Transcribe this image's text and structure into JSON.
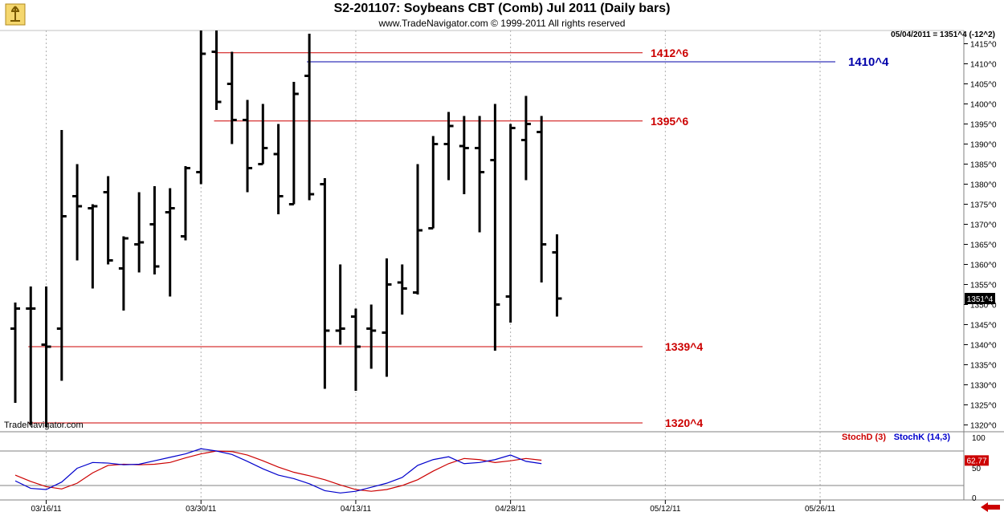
{
  "header": {
    "title": "S2-201107:  Soybeans CBT (Comb) Jul 2011  (Daily bars)",
    "subtitle": "www.TradeNavigator.com © 1999-2011 All rights reserved",
    "quote": "05/04/2011 = 1351^4 (-12^2)",
    "watermark": "TradeNavigator.com",
    "logo_icon": "trade-navigator-logo-icon"
  },
  "price_axis": {
    "ticks": [
      "1415^0",
      "1410^0",
      "1405^0",
      "1400^0",
      "1395^0",
      "1390^0",
      "1385^0",
      "1380^0",
      "1375^0",
      "1370^0",
      "1365^0",
      "1360^0",
      "1355^0",
      "1350^0",
      "1345^0",
      "1340^0",
      "1335^0",
      "1330^0",
      "1325^0",
      "1320^0"
    ],
    "tick_values": [
      1415,
      1410,
      1405,
      1400,
      1395,
      1390,
      1385,
      1380,
      1375,
      1370,
      1365,
      1360,
      1355,
      1350,
      1345,
      1340,
      1335,
      1330,
      1325,
      1320
    ],
    "current_label": "1351^4",
    "current_value": 1351.5,
    "ylim": [
      1318.0,
      1418.3
    ]
  },
  "date_axis": {
    "labels": [
      "03/16/11",
      "03/30/11",
      "04/13/11",
      "04/28/11",
      "05/12/11",
      "05/26/11"
    ],
    "label_bar_index": [
      2,
      12,
      22,
      32,
      42,
      52
    ]
  },
  "level_lines": [
    {
      "label": "1412^6",
      "value": 1412.75,
      "start_index": 13,
      "color": "#cc0000"
    },
    {
      "label": "1410^4",
      "value": 1410.5,
      "start_index": 19,
      "color": "#0000aa"
    },
    {
      "label": "1395^6",
      "value": 1395.75,
      "start_index": 13,
      "color": "#cc0000"
    },
    {
      "label": "1339^4",
      "value": 1339.5,
      "start_index": 1,
      "color": "#cc0000"
    },
    {
      "label": "1320^4",
      "value": 1320.5,
      "start_index": 1,
      "color": "#cc0000"
    }
  ],
  "indicator": {
    "stochd_label": "StochD (3)",
    "stochk_label": "StochK (14,3)",
    "stochd_color": "#cc0000",
    "stochk_color": "#0000cc",
    "axis_ticks": [
      "100",
      "50",
      "0"
    ],
    "axis_tick_values": [
      100,
      50,
      0
    ],
    "upper_band": 80,
    "lower_band": 20,
    "current_label": "62.77",
    "current_value": 62.77
  },
  "chart_data": {
    "type": "ohlc",
    "title": "S2-201107:  Soybeans CBT (Comb) Jul 2011  (Daily bars)",
    "bars": [
      {
        "date": "03/14/11",
        "open": 1344,
        "high": 1350.5,
        "low": 1325.5,
        "close": 1349
      },
      {
        "date": "03/15/11",
        "open": 1349,
        "high": 1354.5,
        "low": 1320,
        "close": 1349
      },
      {
        "date": "03/16/11",
        "open": 1340,
        "high": 1354.5,
        "low": 1319.5,
        "close": 1339.5
      },
      {
        "date": "03/17/11",
        "open": 1344,
        "high": 1393.5,
        "low": 1331,
        "close": 1372
      },
      {
        "date": "03/18/11",
        "open": 1377,
        "high": 1385,
        "low": 1361,
        "close": 1374.5
      },
      {
        "date": "03/21/11",
        "open": 1374,
        "high": 1375,
        "low": 1354,
        "close": 1374.5
      },
      {
        "date": "03/22/11",
        "open": 1378,
        "high": 1382,
        "low": 1360,
        "close": 1361
      },
      {
        "date": "03/23/11",
        "open": 1359,
        "high": 1367,
        "low": 1348.5,
        "close": 1366.5
      },
      {
        "date": "03/24/11",
        "open": 1365,
        "high": 1378,
        "low": 1358,
        "close": 1365.5
      },
      {
        "date": "03/25/11",
        "open": 1370,
        "high": 1379.5,
        "low": 1357.5,
        "close": 1359.5
      },
      {
        "date": "03/28/11",
        "open": 1373,
        "high": 1379,
        "low": 1352,
        "close": 1374
      },
      {
        "date": "03/29/11",
        "open": 1367,
        "high": 1384.5,
        "low": 1366,
        "close": 1384
      },
      {
        "date": "03/30/11",
        "open": 1383,
        "high": 1418.3,
        "low": 1380,
        "close": 1412.5
      },
      {
        "date": "03/31/11",
        "open": 1413,
        "high": 1418.3,
        "low": 1398.5,
        "close": 1400.5
      },
      {
        "date": "04/01/11",
        "open": 1405,
        "high": 1413,
        "low": 1390,
        "close": 1396
      },
      {
        "date": "04/04/11",
        "open": 1396,
        "high": 1401,
        "low": 1378,
        "close": 1384
      },
      {
        "date": "04/05/11",
        "open": 1385,
        "high": 1400,
        "low": 1385,
        "close": 1389
      },
      {
        "date": "04/06/11",
        "open": 1387.5,
        "high": 1395,
        "low": 1372.5,
        "close": 1377
      },
      {
        "date": "04/07/11",
        "open": 1375,
        "high": 1405.5,
        "low": 1375,
        "close": 1402.5
      },
      {
        "date": "04/08/11",
        "open": 1407,
        "high": 1417.5,
        "low": 1376,
        "close": 1377.5
      },
      {
        "date": "04/11/11",
        "open": 1380,
        "high": 1381.5,
        "low": 1329,
        "close": 1343.5
      },
      {
        "date": "04/12/11",
        "open": 1343.5,
        "high": 1360,
        "low": 1340,
        "close": 1344
      },
      {
        "date": "04/13/11",
        "open": 1347,
        "high": 1349,
        "low": 1328.5,
        "close": 1339.5
      },
      {
        "date": "04/14/11",
        "open": 1344,
        "high": 1350,
        "low": 1334,
        "close": 1343.5
      },
      {
        "date": "04/15/11",
        "open": 1343,
        "high": 1361.5,
        "low": 1332,
        "close": 1355
      },
      {
        "date": "04/18/11",
        "open": 1355.5,
        "high": 1360,
        "low": 1347.5,
        "close": 1354
      },
      {
        "date": "04/19/11",
        "open": 1353,
        "high": 1385,
        "low": 1352.5,
        "close": 1368.5
      },
      {
        "date": "04/20/11",
        "open": 1369,
        "high": 1392,
        "low": 1369,
        "close": 1390
      },
      {
        "date": "04/21/11",
        "open": 1390,
        "high": 1398,
        "low": 1381,
        "close": 1394.5
      },
      {
        "date": "04/25/11",
        "open": 1389.5,
        "high": 1397,
        "low": 1377.5,
        "close": 1389
      },
      {
        "date": "04/26/11",
        "open": 1389,
        "high": 1397,
        "low": 1368,
        "close": 1383
      },
      {
        "date": "04/27/11",
        "open": 1386,
        "high": 1400,
        "low": 1338.5,
        "close": 1350
      },
      {
        "date": "04/28/11",
        "open": 1352,
        "high": 1395,
        "low": 1345.5,
        "close": 1394
      },
      {
        "date": "04/29/11",
        "open": 1391,
        "high": 1402,
        "low": 1381,
        "close": 1395
      },
      {
        "date": "05/02/11",
        "open": 1393,
        "high": 1397,
        "low": 1355.5,
        "close": 1365
      },
      {
        "date": "05/03/11",
        "open": 1363,
        "high": 1367.5,
        "low": 1347,
        "close": 1351.5
      }
    ],
    "stochastic": {
      "stochd_name": "StochD (3)",
      "stochk_name": "StochK (14,3)",
      "stochd": [
        38,
        27,
        18,
        14,
        24,
        42,
        55,
        57,
        56,
        57,
        60,
        68,
        75,
        80,
        79,
        73,
        63,
        52,
        43,
        37,
        30,
        21,
        13,
        10,
        13,
        20,
        30,
        45,
        58,
        67,
        65,
        60,
        63,
        67,
        64
      ],
      "stochk": [
        28,
        15,
        13,
        26,
        50,
        60,
        59,
        56,
        57,
        63,
        69,
        75,
        84,
        80,
        74,
        62,
        49,
        38,
        32,
        23,
        11,
        7,
        10,
        17,
        24,
        34,
        55,
        65,
        70,
        58,
        60,
        65,
        73,
        62,
        58
      ]
    }
  }
}
